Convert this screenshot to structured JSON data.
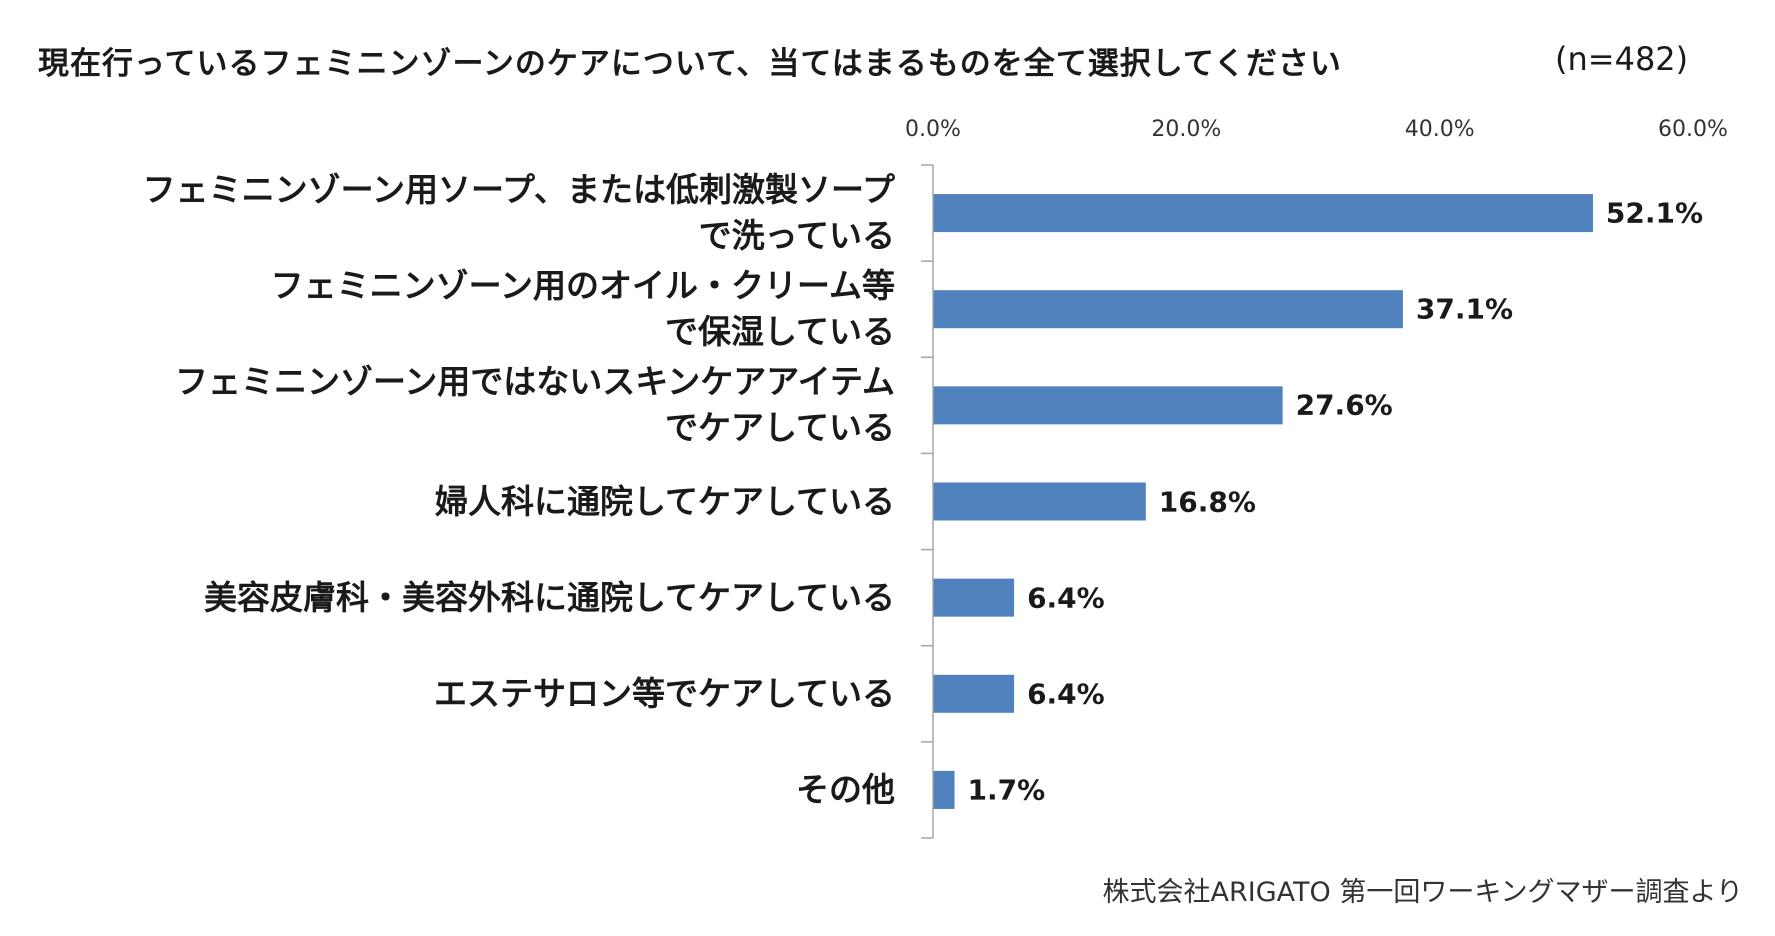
{
  "chart_data": {
    "type": "bar",
    "orientation": "horizontal",
    "title": "現在行っているフェミニンゾーンのケアについて、当てはまるものを全て選択してください",
    "sample_size": "(n=482)",
    "x_ticks": [
      "0.0%",
      "20.0%",
      "40.0%",
      "60.0%"
    ],
    "xlim": [
      0,
      60
    ],
    "categories": [
      [
        "フェミニンゾーン用ソープ、または低刺激製ソープ",
        "で洗っている"
      ],
      [
        "フェミニンゾーン用のオイル・クリーム等",
        "で保湿している"
      ],
      [
        "フェミニンゾーン用ではないスキンケアアイテム",
        "でケアしている"
      ],
      [
        "婦人科に通院してケアしている"
      ],
      [
        "美容皮膚科・美容外科に通院してケアしている"
      ],
      [
        "エステサロン等でケアしている"
      ],
      [
        "その他"
      ]
    ],
    "values": [
      52.1,
      37.1,
      27.6,
      16.8,
      6.4,
      6.4,
      1.7
    ],
    "value_labels": [
      "52.1%",
      "37.1%",
      "27.6%",
      "16.8%",
      "6.4%",
      "6.4%",
      "1.7%"
    ],
    "bar_color": "#4f81bd",
    "grid": false,
    "legend": "none"
  },
  "footer": {
    "source": "株式会社ARIGATO 第一回ワーキングマザー調査より"
  }
}
